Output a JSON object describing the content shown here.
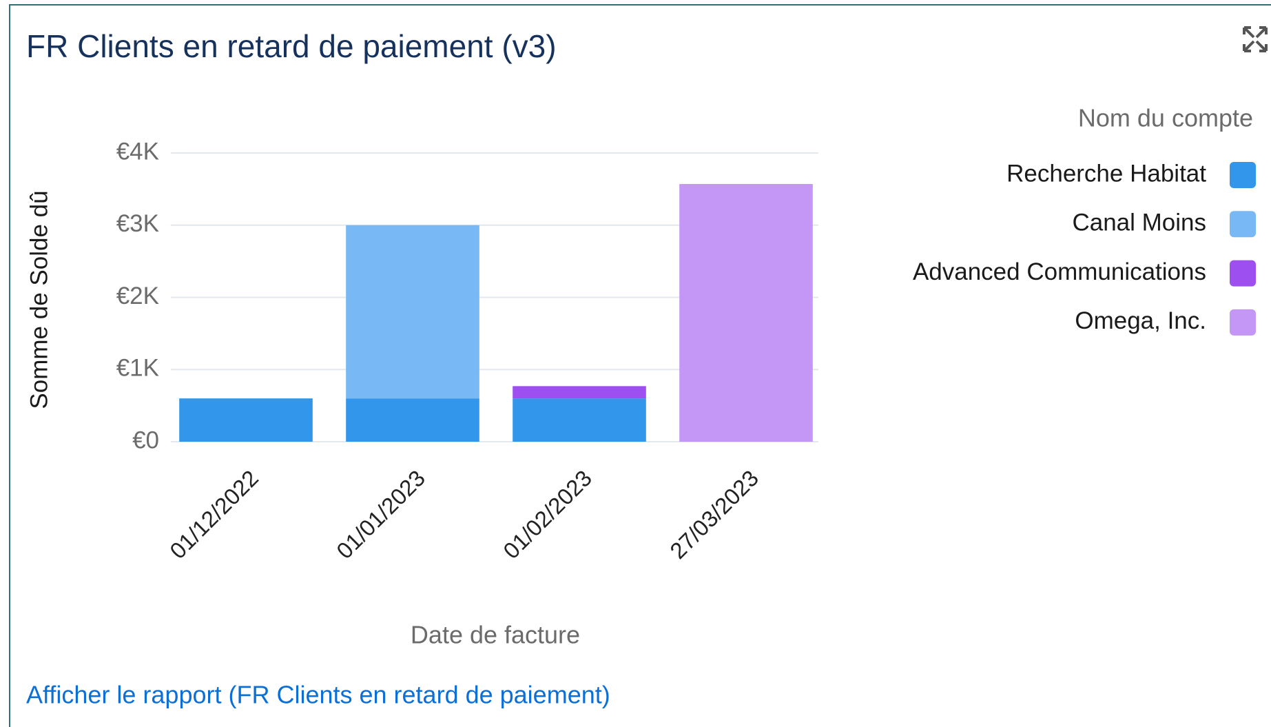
{
  "chart_data": {
    "type": "bar",
    "stacked": true,
    "title": "FR Clients en retard de paiement (v3)",
    "x_label": "Date de facture",
    "y_label": "Somme de Solde dû",
    "legend_title": "Nom du compte",
    "legend": "right",
    "link": "Afficher le rapport (FR Clients en retard de paiement)",
    "categories": [
      "01/12/2022",
      "01/01/2023",
      "01/02/2023",
      "27/03/2023"
    ],
    "series": [
      {
        "name": "Recherche Habitat",
        "color": "#3296ea",
        "values": [
          600,
          600,
          600,
          null
        ]
      },
      {
        "name": "Canal Moins",
        "color": "#78b8f4",
        "values": [
          null,
          2400,
          null,
          null
        ]
      },
      {
        "name": "Advanced Communications",
        "color": "#9d4ff0",
        "values": [
          null,
          null,
          170,
          null
        ]
      },
      {
        "name": "Omega, Inc.",
        "color": "#c496f5",
        "values": [
          null,
          null,
          null,
          3570
        ]
      }
    ],
    "ylim": [
      0,
      4000
    ],
    "yticks": [
      {
        "value": 0,
        "label": "€0"
      },
      {
        "value": 1000,
        "label": "€1K"
      },
      {
        "value": 2000,
        "label": "€2K"
      },
      {
        "value": 3000,
        "label": "€3K"
      },
      {
        "value": 4000,
        "label": "€4K"
      }
    ],
    "grid": true
  }
}
